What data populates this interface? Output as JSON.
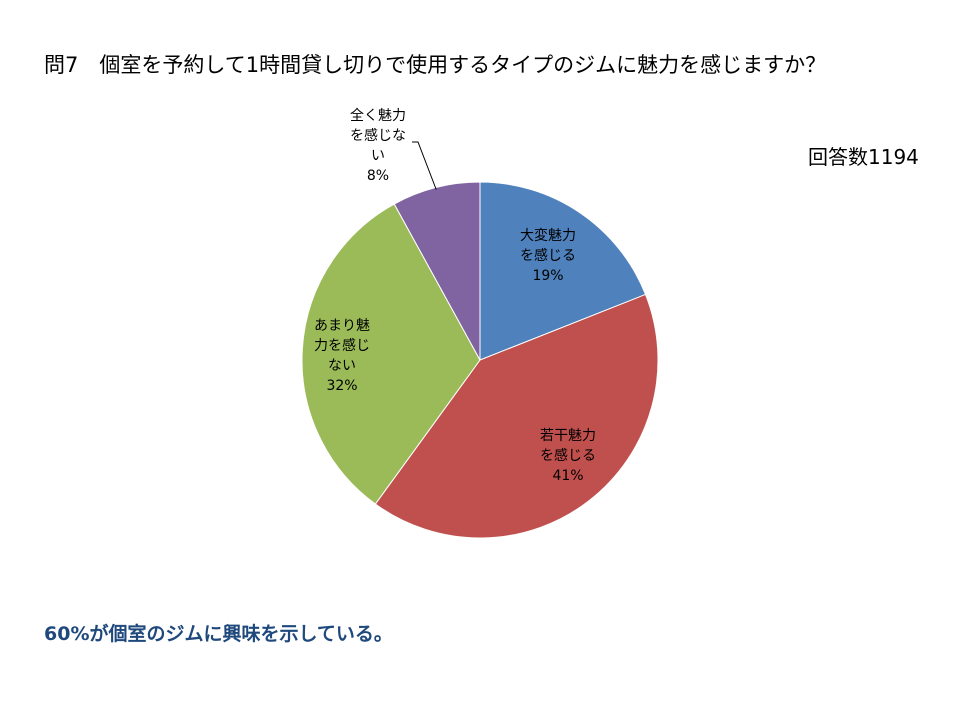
{
  "title": "問7　個室を予約して1時間貸し切りで使用するタイプのジムに魅力を感じますか？",
  "response_count": "回答数1194",
  "summary": "60%が個室のジムに興味を示している。",
  "chart_data": {
    "type": "pie",
    "title": "問7　個室を予約して1時間貸し切りで使用するタイプのジムに魅力を感じますか？",
    "categories": [
      "大変魅力を感じる",
      "若干魅力を感じる",
      "あまり魅力を感じない",
      "全く魅力を感じない"
    ],
    "values": [
      19,
      41,
      32,
      8
    ],
    "percent_labels": [
      "19%",
      "41%",
      "32%",
      "8%"
    ],
    "label_lines": [
      [
        "大変魅力",
        "を感じる"
      ],
      [
        "若干魅力",
        "を感じる"
      ],
      [
        "あまり魅",
        "力を感じ",
        "ない"
      ],
      [
        "全く魅力",
        "を感じな",
        "い"
      ]
    ],
    "colors": [
      "#4f81bd",
      "#c0504d",
      "#9bbb59",
      "#8064a2"
    ],
    "start_angle": "12 o'clock",
    "direction": "clockwise",
    "legend": "none"
  }
}
